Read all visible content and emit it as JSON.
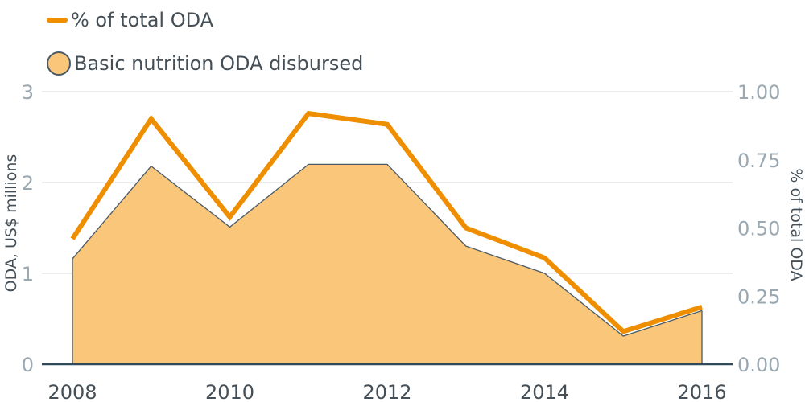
{
  "chart_data": {
    "type": "area+line",
    "title": "",
    "legend": {
      "placement": "top-left",
      "items": [
        {
          "label": "% of total ODA",
          "kind": "line"
        },
        {
          "label": "Basic nutrition ODA disbursed",
          "kind": "area"
        }
      ]
    },
    "x": [
      2008,
      2009,
      2010,
      2011,
      2012,
      2013,
      2014,
      2015,
      2016
    ],
    "x_ticks": [
      "2008",
      "2010",
      "2012",
      "2014",
      "2016"
    ],
    "series": [
      {
        "name": "Basic nutrition ODA disbursed",
        "type": "area",
        "axis": "left",
        "values": [
          1.16,
          2.18,
          1.51,
          2.2,
          2.2,
          1.3,
          1.0,
          0.31,
          0.59
        ]
      },
      {
        "name": "% of total ODA",
        "type": "line",
        "axis": "right",
        "values": [
          0.46,
          0.9,
          0.54,
          0.92,
          0.88,
          0.5,
          0.39,
          0.12,
          0.21
        ]
      }
    ],
    "y_left": {
      "label": "ODA, US$ millions",
      "lim": [
        0,
        3
      ],
      "ticks": [
        "0",
        "1",
        "2",
        "3"
      ]
    },
    "y_right": {
      "label": "% of total ODA",
      "lim": [
        0,
        1
      ],
      "ticks": [
        "0.00",
        "0.25",
        "0.50",
        "0.75",
        "1.00"
      ]
    },
    "grid": true,
    "colors": {
      "line": "#ee8e00",
      "area_fill": "#f9c67a",
      "area_stroke": "#4a5a66",
      "left_axis": "#9aa8b1",
      "right_axis": "#9aa8b1",
      "grid": "#d4d9dc",
      "baseline": "#2f4a5a",
      "x_ticks": "#444f57",
      "axis_title": "#444f57"
    }
  }
}
